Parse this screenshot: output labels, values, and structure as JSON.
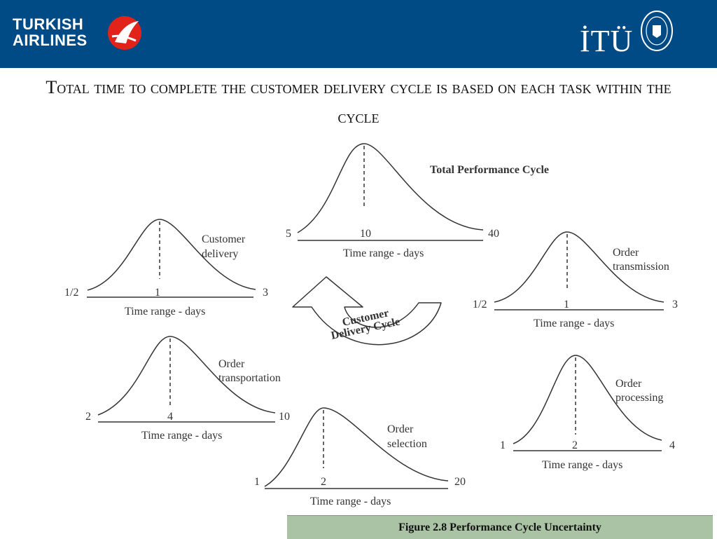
{
  "header": {
    "brand_line1": "TURKISH",
    "brand_line2": "AIRLINES",
    "university_logo": "İTÜ",
    "colors": {
      "bar": "#004a85",
      "emblem_red": "#e2231a"
    }
  },
  "title": "Total time to complete the customer delivery cycle is based on each task within the cycle",
  "center_arrow": {
    "line1": "Customer",
    "line2": "Delivery Cycle"
  },
  "cycles": [
    {
      "id": "total",
      "label_lines": [
        "Total Performance Cycle"
      ],
      "bold": true,
      "min": "5",
      "mode": "10",
      "max": "40",
      "axis_label": "Time range - days"
    },
    {
      "id": "customer-delivery",
      "label_lines": [
        "Customer",
        "delivery"
      ],
      "min": "1/2",
      "mode": "1",
      "max": "3",
      "axis_label": "Time range - days"
    },
    {
      "id": "order-transmission",
      "label_lines": [
        "Order",
        "transmission"
      ],
      "min": "1/2",
      "mode": "1",
      "max": "3",
      "axis_label": "Time range - days"
    },
    {
      "id": "order-transportation",
      "label_lines": [
        "Order",
        "transportation"
      ],
      "min": "2",
      "mode": "4",
      "max": "10",
      "axis_label": "Time range - days"
    },
    {
      "id": "order-processing",
      "label_lines": [
        "Order",
        "processing"
      ],
      "min": "1",
      "mode": "2",
      "max": "4",
      "axis_label": "Time range - days"
    },
    {
      "id": "order-selection",
      "label_lines": [
        "Order",
        "selection"
      ],
      "min": "1",
      "mode": "2",
      "max": "20",
      "axis_label": "Time range - days"
    }
  ],
  "caption": "Figure 2.8 Performance Cycle Uncertainty"
}
